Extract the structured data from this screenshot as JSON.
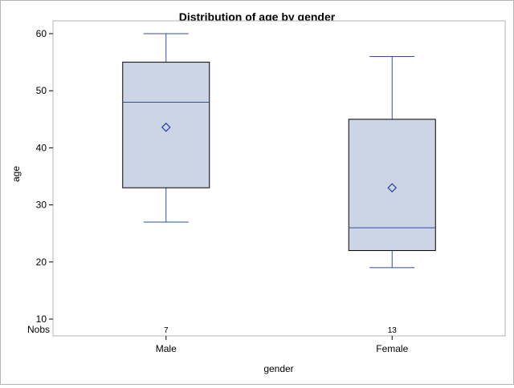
{
  "chart_data": {
    "type": "box",
    "title": "Distribution of age by gender",
    "xlabel": "gender",
    "ylabel": "age",
    "ylim": [
      10,
      60
    ],
    "yticks": [
      10,
      20,
      30,
      40,
      50,
      60
    ],
    "categories": [
      "Male",
      "Female"
    ],
    "boxes": [
      {
        "category": "Male",
        "min": 27,
        "q1": 33,
        "median": 48,
        "q3": 55,
        "max": 60,
        "mean": 43.6,
        "nobs": 7
      },
      {
        "category": "Female",
        "min": 19,
        "q1": 22,
        "median": 26,
        "q3": 45,
        "max": 56,
        "mean": 33,
        "nobs": 13
      }
    ],
    "nobs_label": "Nobs",
    "colors": {
      "box_fill": "#cbd5e5",
      "box_edge": "#000000",
      "whisker": "#2f4f9e",
      "median": "#2f4f9e",
      "mean_marker": "#1f3fa3",
      "axis": "#000000"
    },
    "legend": "none",
    "grid": false
  }
}
